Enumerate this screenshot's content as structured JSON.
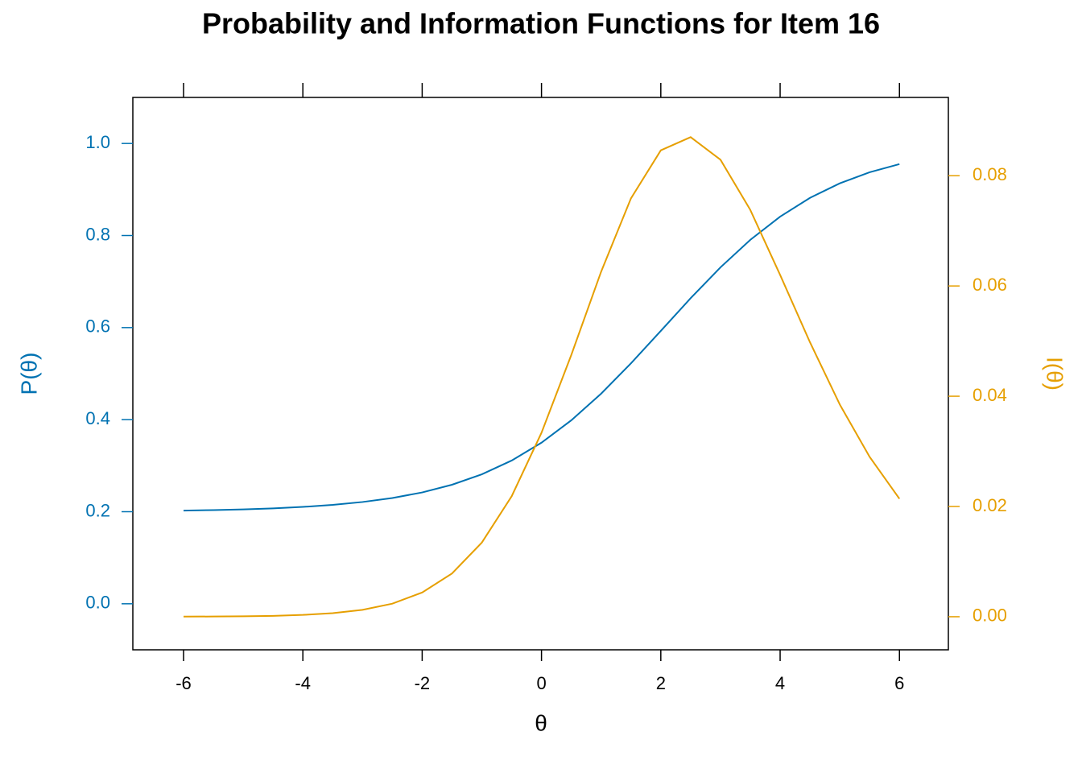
{
  "chart_data": {
    "type": "line",
    "title": "Probability and Information Functions for Item 16",
    "x_label": "θ",
    "y_label": "P(θ)",
    "y2_label": "I(θ)",
    "x": [
      -6,
      -5.5,
      -5,
      -4.5,
      -4,
      -3.5,
      -3,
      -2.5,
      -2,
      -1.5,
      -1,
      -0.5,
      0,
      0.5,
      1,
      1.5,
      2,
      2.5,
      3,
      3.5,
      4,
      4.5,
      5,
      5.5,
      6
    ],
    "series": [
      {
        "name": "P(θ)",
        "color": "#0072B2",
        "axis": "y",
        "values": [
          0.2025,
          0.2036,
          0.2051,
          0.2073,
          0.2104,
          0.2148,
          0.2211,
          0.2298,
          0.2419,
          0.2586,
          0.2812,
          0.3112,
          0.35,
          0.3986,
          0.4565,
          0.5224,
          0.5928,
          0.6638,
          0.7308,
          0.7906,
          0.841,
          0.8818,
          0.9134,
          0.9374,
          0.9552
        ]
      },
      {
        "name": "I(θ)",
        "color": "#E69F00",
        "axis": "y2",
        "values": [
          2e-05,
          4e-05,
          8e-05,
          0.00016,
          0.00033,
          0.00064,
          0.00125,
          0.00237,
          0.0044,
          0.00785,
          0.01345,
          0.02185,
          0.03337,
          0.0475,
          0.0626,
          0.0759,
          0.0846,
          0.087,
          0.0829,
          0.0738,
          0.062,
          0.0498,
          0.0385,
          0.029,
          0.0214
        ]
      }
    ],
    "xlim": [
      -6.85,
      6.82
    ],
    "xticks": [
      -6,
      -4,
      -2,
      0,
      2,
      4,
      6
    ],
    "ylim": [
      -0.1,
      1.1
    ],
    "yticks": [
      {
        "value": 0,
        "label": "0.0"
      },
      0.2,
      0.4,
      0.6,
      0.8,
      {
        "value": 1,
        "label": "1.0"
      }
    ],
    "y2lim": [
      -0.006,
      0.0942
    ],
    "y2ticks": [
      {
        "value": 0,
        "label": "0.00"
      },
      {
        "value": 0.02,
        "label": "0.02"
      },
      {
        "value": 0.04,
        "label": "0.04"
      },
      {
        "value": 0.06,
        "label": "0.06"
      },
      {
        "value": 0.08,
        "label": "0.08"
      }
    ]
  }
}
